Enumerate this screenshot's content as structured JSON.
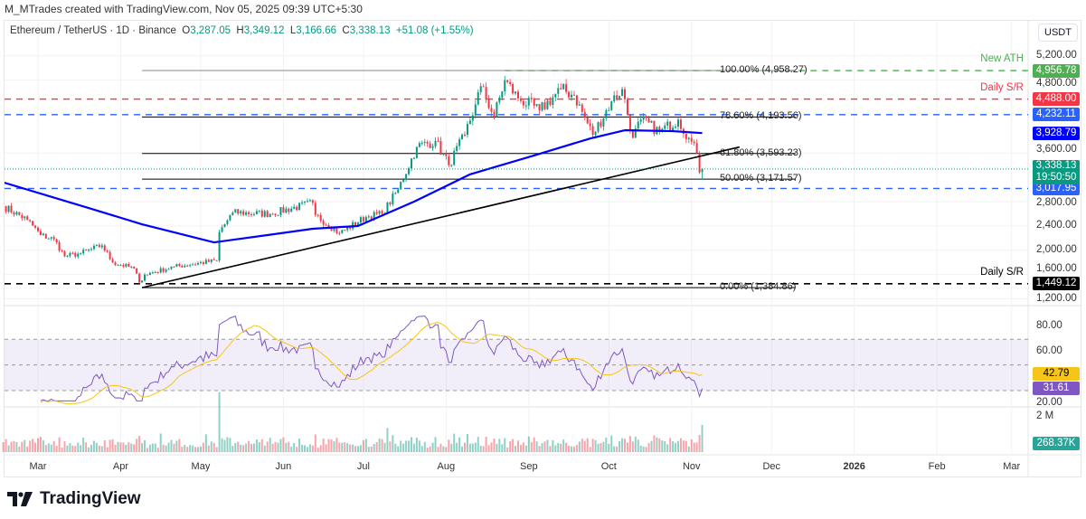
{
  "header": "M_MTrades created with TradingView.com, Nov 05, 2025 09:39 UTC+5:30",
  "legend": {
    "symbol": "Ethereum / TetherUS · 1D · Binance",
    "o_label": "O",
    "o": "3,287.05",
    "h_label": "H",
    "h": "3,349.12",
    "l_label": "L",
    "l": "3,166.66",
    "c_label": "C",
    "c": "3,338.13",
    "change": "+51.08 (+1.55%)"
  },
  "currency": "USDT",
  "logo": "TradingView",
  "colors": {
    "up": "#089981",
    "down": "#f23645",
    "ma": "#0000ff",
    "rsi": "#7e57c2",
    "rsi_ma": "#f5c518",
    "fib": "#000000",
    "ath": "#4caf50",
    "sr_red": "#f23645",
    "sr_blue": "#2962ff"
  },
  "chart_data": {
    "type": "candlestick",
    "price_axis": {
      "ticks": [
        "5,200.00",
        "4,800.00",
        "3,600.00",
        "2,800.00",
        "2,400.00",
        "2,000.00",
        "1,600.00",
        "1,200.00"
      ],
      "values": [
        5200,
        4800,
        3600,
        2800,
        2400,
        2000,
        1600,
        1200
      ],
      "range": [
        1200,
        5200
      ]
    },
    "x_axis": {
      "labels": [
        "Mar",
        "Apr",
        "May",
        "Jun",
        "Jul",
        "Aug",
        "Sep",
        "Oct",
        "Nov",
        "Dec",
        "2026",
        "Feb",
        "Mar"
      ],
      "dates": [
        "2025-03-01",
        "2025-04-01",
        "2025-05-01",
        "2025-06-01",
        "2025-07-01",
        "2025-08-01",
        "2025-09-01",
        "2025-10-01",
        "2025-11-01",
        "2025-12-01",
        "2026-01-01",
        "2026-02-01",
        "2026-03-01"
      ]
    },
    "close_anchors": [
      [
        "2025-02-16",
        2725
      ],
      [
        "2025-02-25",
        2500
      ],
      [
        "2025-03-02",
        2250
      ],
      [
        "2025-03-07",
        2180
      ],
      [
        "2025-03-11",
        1900
      ],
      [
        "2025-03-17",
        1950
      ],
      [
        "2025-03-25",
        2080
      ],
      [
        "2025-03-29",
        1800
      ],
      [
        "2025-04-06",
        1700
      ],
      [
        "2025-04-08",
        1470
      ],
      [
        "2025-04-10",
        1600
      ],
      [
        "2025-04-21",
        1730
      ],
      [
        "2025-05-07",
        1830
      ],
      [
        "2025-05-08",
        2300
      ],
      [
        "2025-05-13",
        2620
      ],
      [
        "2025-05-27",
        2600
      ],
      [
        "2025-06-12",
        2780
      ],
      [
        "2025-06-13",
        2580
      ],
      [
        "2025-06-22",
        2280
      ],
      [
        "2025-07-02",
        2550
      ],
      [
        "2025-07-08",
        2600
      ],
      [
        "2025-07-14",
        3000
      ],
      [
        "2025-07-21",
        3700
      ],
      [
        "2025-07-28",
        3800
      ],
      [
        "2025-08-02",
        3400
      ],
      [
        "2025-08-08",
        3900
      ],
      [
        "2025-08-12",
        4400
      ],
      [
        "2025-08-14",
        4700
      ],
      [
        "2025-08-19",
        4200
      ],
      [
        "2025-08-23",
        4800
      ],
      [
        "2025-08-28",
        4500
      ],
      [
        "2025-09-05",
        4300
      ],
      [
        "2025-09-13",
        4650
      ],
      [
        "2025-09-18",
        4550
      ],
      [
        "2025-09-25",
        3900
      ],
      [
        "2025-10-02",
        4450
      ],
      [
        "2025-10-06",
        4650
      ],
      [
        "2025-10-10",
        3850
      ],
      [
        "2025-10-13",
        4150
      ],
      [
        "2025-10-20",
        3950
      ],
      [
        "2025-10-27",
        4150
      ],
      [
        "2025-10-31",
        3850
      ],
      [
        "2025-11-03",
        3600
      ],
      [
        "2025-11-04",
        3280
      ],
      [
        "2025-11-05",
        3338.13
      ]
    ],
    "last_candle": {
      "open": 3287.05,
      "high": 3349.12,
      "low": 3166.66,
      "close": 3338.13
    },
    "ma_anchors": [
      [
        "2025-02-16",
        3117
      ],
      [
        "2025-03-20",
        2696
      ],
      [
        "2025-04-09",
        2428
      ],
      [
        "2025-05-06",
        2130
      ],
      [
        "2025-05-26",
        2250
      ],
      [
        "2025-06-12",
        2354
      ],
      [
        "2025-06-29",
        2400
      ],
      [
        "2025-07-20",
        2800
      ],
      [
        "2025-08-10",
        3250
      ],
      [
        "2025-09-03",
        3560
      ],
      [
        "2025-09-24",
        3840
      ],
      [
        "2025-10-07",
        3976
      ],
      [
        "2025-10-25",
        3960
      ],
      [
        "2025-11-05",
        3928.79
      ]
    ],
    "trendline": {
      "from": [
        "2025-04-09",
        1384.86
      ],
      "to": [
        "2025-11-19",
        3700
      ]
    },
    "fib": {
      "from": "2025-04-09",
      "to": "2025-12-10",
      "levels": [
        {
          "label": "100.00% (4,958.27)",
          "price": 4958.27
        },
        {
          "label": "78.60% (4,193.56)",
          "price": 4193.56
        },
        {
          "label": "61.80% (3,593.23)",
          "price": 3593.23
        },
        {
          "label": "50.00% (3,171.57)",
          "price": 3171.57
        },
        {
          "label": "0.00% (1,384.86)",
          "price": 1384.86
        }
      ]
    },
    "hlines": [
      {
        "price": 4956.78,
        "tag": "4,956.78",
        "note": "New ATH",
        "color": "#4caf50",
        "from": "2025-08-23"
      },
      {
        "price": 4488,
        "tag": "4,488.00",
        "note": "Daily S/R",
        "color": "#f23645"
      },
      {
        "price": 4232.11,
        "tag": "4,232.11",
        "color": "#2962ff"
      },
      {
        "price": 3017.95,
        "tag": "3,017.95",
        "color": "#2962ff"
      },
      {
        "price": 1449.12,
        "tag": "1,449.12",
        "note": "Daily S/R",
        "color": "#000000"
      }
    ],
    "price_tags": {
      "ma": "3,928.79",
      "last": "3,338.13",
      "countdown": "19:50:50"
    },
    "rsi": {
      "ticks": [
        "80.00",
        "60.00",
        "20.00"
      ],
      "values": [
        80,
        60,
        20
      ],
      "bands": [
        70,
        50,
        30
      ],
      "last": "31.61",
      "ma_last": "42.79"
    },
    "volume": {
      "tick": "2 M",
      "last": "268.37K"
    }
  }
}
